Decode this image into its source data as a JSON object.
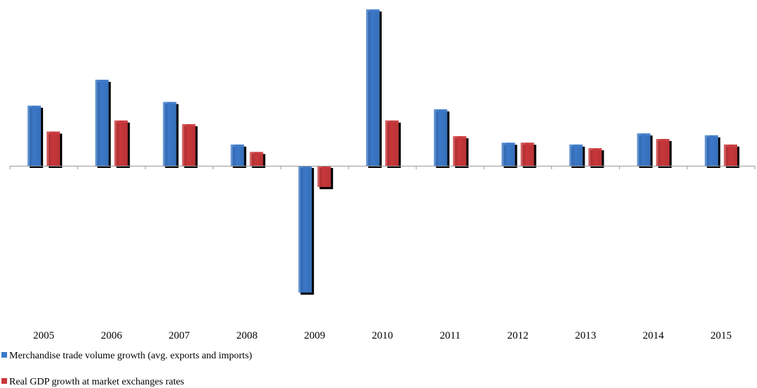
{
  "chart_data": {
    "type": "bar",
    "title": "",
    "xlabel": "",
    "ylabel": "",
    "categories": [
      "2005",
      "2006",
      "2007",
      "2008",
      "2009",
      "2010",
      "2011",
      "2012",
      "2013",
      "2014",
      "2015"
    ],
    "series": [
      {
        "name": "Merchandise trade volume growth (avg. exports and imports)",
        "color": "#3B78C8",
        "values": [
          6.5,
          9.3,
          6.9,
          2.3,
          -13.7,
          16.9,
          6.1,
          2.5,
          2.3,
          3.5,
          3.3
        ]
      },
      {
        "name": "Real GDP growth at market exchanges rates",
        "color": "#C8373A",
        "values": [
          3.7,
          4.9,
          4.5,
          1.5,
          -2.3,
          4.9,
          3.2,
          2.5,
          1.9,
          2.9,
          2.3
        ]
      }
    ],
    "ylim": [
      -14,
      17
    ],
    "yaxis_visible": false,
    "grid": false,
    "legend_position": "bottom-left",
    "bar_shadow": true
  }
}
